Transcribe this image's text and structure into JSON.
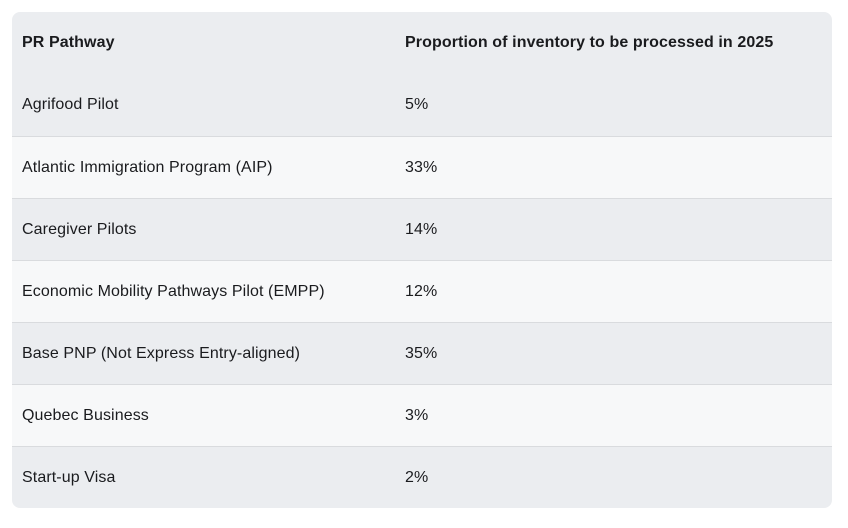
{
  "table": {
    "header": {
      "col1": "PR Pathway",
      "col2": "Proportion of inventory to be processed in 2025"
    },
    "rows": [
      {
        "pathway": "Agrifood Pilot",
        "proportion": "5%"
      },
      {
        "pathway": "Atlantic Immigration Program (AIP)",
        "proportion": "33%"
      },
      {
        "pathway": "Caregiver Pilots",
        "proportion": "14%"
      },
      {
        "pathway": "Economic Mobility Pathways Pilot (EMPP)",
        "proportion": "12%"
      },
      {
        "pathway": "Base PNP (Not Express Entry-aligned)",
        "proportion": "35%"
      },
      {
        "pathway": "Quebec Business",
        "proportion": "3%"
      },
      {
        "pathway": "Start-up Visa",
        "proportion": "2%"
      }
    ],
    "colors": {
      "header_bg": "#ebedf0",
      "row_alt_bg": "#ebedf0",
      "row_bg": "#f7f8f9",
      "divider": "#d9dbde",
      "text": "#1a1b1e",
      "page_bg": "#ffffff"
    }
  },
  "chart_data": {
    "type": "table",
    "title": "",
    "columns": [
      "PR Pathway",
      "Proportion of inventory to be processed in 2025"
    ],
    "rows": [
      [
        "Agrifood Pilot",
        "5%"
      ],
      [
        "Atlantic Immigration Program (AIP)",
        "33%"
      ],
      [
        "Caregiver Pilots",
        "14%"
      ],
      [
        "Economic Mobility Pathways Pilot (EMPP)",
        "12%"
      ],
      [
        "Base PNP (Not Express Entry-aligned)",
        "35%"
      ],
      [
        "Quebec Business",
        "3%"
      ],
      [
        "Start-up Visa",
        "2%"
      ]
    ],
    "values_numeric": [
      5,
      33,
      14,
      12,
      35,
      3,
      2
    ],
    "unit": "%"
  }
}
